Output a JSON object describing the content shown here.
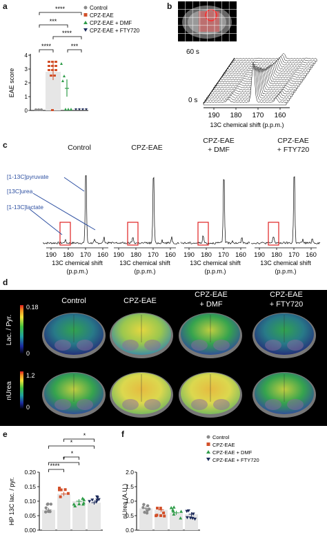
{
  "panel_labels": {
    "a": "a",
    "b": "b",
    "c": "c",
    "d": "d",
    "e": "e",
    "f": "f"
  },
  "groups": [
    "Control",
    "CPZ-EAE",
    "CPZ-EAE + DMF",
    "CPZ-EAE + FTY720"
  ],
  "colors": {
    "control": "#8a8a8a",
    "cpz": "#d2502a",
    "dmf": "#2e9c48",
    "fty": "#1c2a5a",
    "bar": "#e6e6e6"
  },
  "legend_a": [
    "Control",
    "CPZ-EAE",
    "CPZ-EAE + DMF",
    "CPZ-EAE + FTY720"
  ],
  "legend_ef": [
    "Control",
    "CPZ-EAE",
    "CPZ-EAE + DMF",
    "CPZ-EAE + FTY720"
  ],
  "panel_a": {
    "ylabel": "EAE score",
    "yticks": [
      "0",
      "1",
      "2",
      "3",
      "4"
    ],
    "sig": [
      "****",
      "***",
      "****",
      "****",
      "***"
    ]
  },
  "panel_b": {
    "time_top": "60 s",
    "time_bottom": "0 s",
    "xticks": [
      "190",
      "180",
      "170",
      "160"
    ],
    "xlabel": "13C chemical shift (p.p.m.)"
  },
  "panel_c": {
    "columns": [
      [
        "Control"
      ],
      [
        "CPZ-EAE"
      ],
      [
        "CPZ-EAE",
        "+ DMF"
      ],
      [
        "CPZ-EAE",
        "+ FTY720"
      ]
    ],
    "metabolites": [
      "[1-13C]pyruvate",
      "[13C]urea",
      "[1-13C]lactate"
    ],
    "xticks": [
      "190",
      "180",
      "170",
      "160"
    ],
    "xlabel1": "13C chemical shift",
    "xlabel2": "(p.p.m.)"
  },
  "panel_d": {
    "columns": [
      [
        "Control"
      ],
      [
        "CPZ-EAE"
      ],
      [
        "CPZ-EAE",
        "+ DMF"
      ],
      [
        "CPZ-EAE",
        "+ FTY720"
      ]
    ],
    "row1": {
      "label": "Lac. / Pyr.",
      "max": "0.18",
      "min": "0"
    },
    "row2": {
      "label": "nUrea",
      "max": "1.2",
      "min": "0"
    }
  },
  "chart_data": [
    {
      "type": "bar",
      "panel": "e",
      "categories": [
        "Control",
        "CPZ-EAE",
        "CPZ-EAE + DMF",
        "CPZ-EAE + FTY720"
      ],
      "values": [
        0.07,
        0.125,
        0.1,
        0.095
      ],
      "ylabel": "HP 13C lac. / pyr.",
      "ylim": [
        0,
        0.2
      ],
      "yticks": [
        "0.00",
        "0.05",
        "0.10",
        "0.15",
        "0.20"
      ],
      "significance": [
        "****",
        "*",
        "*",
        "*",
        "*"
      ]
    },
    {
      "type": "bar",
      "panel": "f",
      "categories": [
        "Control",
        "CPZ-EAE",
        "CPZ-EAE + DMF",
        "CPZ-EAE + FTY720"
      ],
      "values": [
        0.75,
        0.7,
        0.6,
        0.55
      ],
      "ylabel": "nUrea (A.U.)",
      "ylim": [
        0,
        2.0
      ],
      "yticks": [
        "0.0",
        "0.5",
        "1.0",
        "1.5",
        "2.0"
      ]
    }
  ]
}
